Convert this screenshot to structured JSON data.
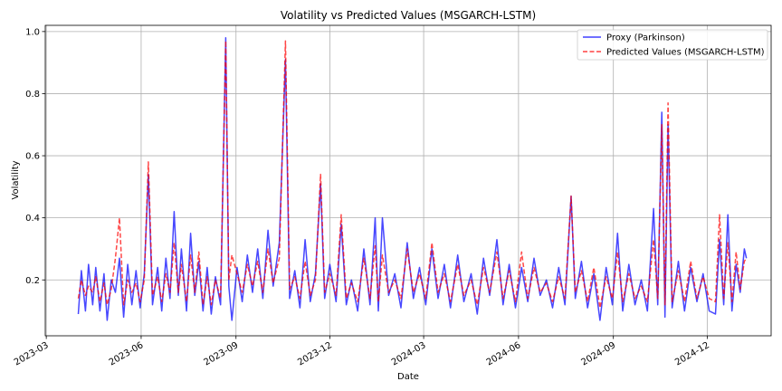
{
  "chart_data": {
    "type": "line",
    "title": "Volatility vs Predicted Values (MSGARCH-LSTM)",
    "xlabel": "Date",
    "ylabel": "Volatility",
    "x_range": [
      "2023-02-28",
      "2025-02-01"
    ],
    "ylim": [
      0.02,
      1.02
    ],
    "x_ticks": [
      "2023-03",
      "2023-06",
      "2023-09",
      "2023-12",
      "2024-03",
      "2024-06",
      "2024-09",
      "2024-12"
    ],
    "y_ticks": [
      "0.2",
      "0.4",
      "0.6",
      "0.8",
      "1.0"
    ],
    "grid": true,
    "legend_position": "top-right",
    "series": [
      {
        "name": "Proxy (Parkinson)",
        "color": "#0000ff",
        "style": "solid",
        "points": [
          [
            "2023-04-01",
            0.09
          ],
          [
            "2023-04-04",
            0.23
          ],
          [
            "2023-04-08",
            0.1
          ],
          [
            "2023-04-11",
            0.25
          ],
          [
            "2023-04-15",
            0.12
          ],
          [
            "2023-04-18",
            0.24
          ],
          [
            "2023-04-22",
            0.1
          ],
          [
            "2023-04-26",
            0.22
          ],
          [
            "2023-04-29",
            0.07
          ],
          [
            "2023-05-03",
            0.2
          ],
          [
            "2023-05-07",
            0.16
          ],
          [
            "2023-05-11",
            0.27
          ],
          [
            "2023-05-15",
            0.08
          ],
          [
            "2023-05-19",
            0.25
          ],
          [
            "2023-05-23",
            0.12
          ],
          [
            "2023-05-27",
            0.23
          ],
          [
            "2023-05-31",
            0.11
          ],
          [
            "2023-06-04",
            0.22
          ],
          [
            "2023-06-08",
            0.54
          ],
          [
            "2023-06-12",
            0.12
          ],
          [
            "2023-06-17",
            0.24
          ],
          [
            "2023-06-21",
            0.1
          ],
          [
            "2023-06-25",
            0.27
          ],
          [
            "2023-06-29",
            0.14
          ],
          [
            "2023-07-03",
            0.42
          ],
          [
            "2023-07-07",
            0.15
          ],
          [
            "2023-07-10",
            0.3
          ],
          [
            "2023-07-15",
            0.1
          ],
          [
            "2023-07-19",
            0.35
          ],
          [
            "2023-07-23",
            0.15
          ],
          [
            "2023-07-27",
            0.26
          ],
          [
            "2023-07-31",
            0.1
          ],
          [
            "2023-08-04",
            0.24
          ],
          [
            "2023-08-08",
            0.09
          ],
          [
            "2023-08-12",
            0.21
          ],
          [
            "2023-08-17",
            0.12
          ],
          [
            "2023-08-22",
            0.98
          ],
          [
            "2023-08-25",
            0.18
          ],
          [
            "2023-08-28",
            0.07
          ],
          [
            "2023-09-02",
            0.24
          ],
          [
            "2023-09-07",
            0.13
          ],
          [
            "2023-09-12",
            0.28
          ],
          [
            "2023-09-17",
            0.16
          ],
          [
            "2023-09-22",
            0.3
          ],
          [
            "2023-09-27",
            0.14
          ],
          [
            "2023-10-02",
            0.36
          ],
          [
            "2023-10-07",
            0.18
          ],
          [
            "2023-10-13",
            0.32
          ],
          [
            "2023-10-19",
            0.91
          ],
          [
            "2023-10-23",
            0.14
          ],
          [
            "2023-10-28",
            0.23
          ],
          [
            "2023-11-02",
            0.11
          ],
          [
            "2023-11-07",
            0.33
          ],
          [
            "2023-11-12",
            0.13
          ],
          [
            "2023-11-17",
            0.22
          ],
          [
            "2023-11-22",
            0.51
          ],
          [
            "2023-11-26",
            0.14
          ],
          [
            "2023-12-01",
            0.25
          ],
          [
            "2023-12-07",
            0.13
          ],
          [
            "2023-12-12",
            0.38
          ],
          [
            "2023-12-17",
            0.12
          ],
          [
            "2023-12-22",
            0.2
          ],
          [
            "2023-12-28",
            0.1
          ],
          [
            "2024-01-03",
            0.3
          ],
          [
            "2024-01-09",
            0.12
          ],
          [
            "2024-01-14",
            0.4
          ],
          [
            "2024-01-17",
            0.1
          ],
          [
            "2024-01-21",
            0.4
          ],
          [
            "2024-01-27",
            0.15
          ],
          [
            "2024-02-02",
            0.22
          ],
          [
            "2024-02-08",
            0.11
          ],
          [
            "2024-02-14",
            0.32
          ],
          [
            "2024-02-20",
            0.14
          ],
          [
            "2024-02-26",
            0.24
          ],
          [
            "2024-03-03",
            0.12
          ],
          [
            "2024-03-09",
            0.3
          ],
          [
            "2024-03-15",
            0.14
          ],
          [
            "2024-03-21",
            0.25
          ],
          [
            "2024-03-27",
            0.11
          ],
          [
            "2024-04-03",
            0.28
          ],
          [
            "2024-04-09",
            0.13
          ],
          [
            "2024-04-16",
            0.22
          ],
          [
            "2024-04-22",
            0.09
          ],
          [
            "2024-04-28",
            0.27
          ],
          [
            "2024-05-04",
            0.15
          ],
          [
            "2024-05-11",
            0.33
          ],
          [
            "2024-05-17",
            0.12
          ],
          [
            "2024-05-23",
            0.25
          ],
          [
            "2024-05-29",
            0.11
          ],
          [
            "2024-06-04",
            0.24
          ],
          [
            "2024-06-10",
            0.13
          ],
          [
            "2024-06-16",
            0.27
          ],
          [
            "2024-06-22",
            0.15
          ],
          [
            "2024-06-28",
            0.2
          ],
          [
            "2024-07-04",
            0.11
          ],
          [
            "2024-07-10",
            0.24
          ],
          [
            "2024-07-16",
            0.12
          ],
          [
            "2024-07-22",
            0.47
          ],
          [
            "2024-07-26",
            0.14
          ],
          [
            "2024-08-01",
            0.26
          ],
          [
            "2024-08-07",
            0.11
          ],
          [
            "2024-08-13",
            0.22
          ],
          [
            "2024-08-19",
            0.07
          ],
          [
            "2024-08-25",
            0.24
          ],
          [
            "2024-08-31",
            0.12
          ],
          [
            "2024-09-05",
            0.35
          ],
          [
            "2024-09-10",
            0.1
          ],
          [
            "2024-09-16",
            0.25
          ],
          [
            "2024-09-22",
            0.12
          ],
          [
            "2024-09-28",
            0.2
          ],
          [
            "2024-10-04",
            0.1
          ],
          [
            "2024-10-10",
            0.43
          ],
          [
            "2024-10-14",
            0.12
          ],
          [
            "2024-10-18",
            0.74
          ],
          [
            "2024-10-21",
            0.08
          ],
          [
            "2024-10-24",
            0.7
          ],
          [
            "2024-10-28",
            0.11
          ],
          [
            "2024-11-03",
            0.26
          ],
          [
            "2024-11-09",
            0.1
          ],
          [
            "2024-11-15",
            0.24
          ],
          [
            "2024-11-21",
            0.13
          ],
          [
            "2024-11-27",
            0.22
          ],
          [
            "2024-12-03",
            0.1
          ],
          [
            "2024-12-09",
            0.09
          ],
          [
            "2024-12-13",
            0.33
          ],
          [
            "2024-12-17",
            0.12
          ],
          [
            "2024-12-21",
            0.41
          ],
          [
            "2024-12-25",
            0.1
          ],
          [
            "2024-12-29",
            0.25
          ],
          [
            "2025-01-02",
            0.16
          ],
          [
            "2025-01-06",
            0.3
          ],
          [
            "2025-01-08",
            0.27
          ]
        ]
      },
      {
        "name": "Predicted Values (MSGARCH-LSTM)",
        "color": "#ff0000",
        "style": "dashed",
        "points": [
          [
            "2023-04-01",
            0.14
          ],
          [
            "2023-04-04",
            0.2
          ],
          [
            "2023-04-08",
            0.15
          ],
          [
            "2023-04-11",
            0.18
          ],
          [
            "2023-04-15",
            0.16
          ],
          [
            "2023-04-18",
            0.21
          ],
          [
            "2023-04-22",
            0.13
          ],
          [
            "2023-04-26",
            0.19
          ],
          [
            "2023-04-29",
            0.12
          ],
          [
            "2023-05-03",
            0.17
          ],
          [
            "2023-05-07",
            0.27
          ],
          [
            "2023-05-11",
            0.4
          ],
          [
            "2023-05-15",
            0.12
          ],
          [
            "2023-05-19",
            0.2
          ],
          [
            "2023-05-23",
            0.16
          ],
          [
            "2023-05-27",
            0.19
          ],
          [
            "2023-05-31",
            0.13
          ],
          [
            "2023-06-04",
            0.2
          ],
          [
            "2023-06-08",
            0.58
          ],
          [
            "2023-06-12",
            0.15
          ],
          [
            "2023-06-17",
            0.21
          ],
          [
            "2023-06-21",
            0.13
          ],
          [
            "2023-06-25",
            0.22
          ],
          [
            "2023-06-29",
            0.16
          ],
          [
            "2023-07-03",
            0.32
          ],
          [
            "2023-07-07",
            0.16
          ],
          [
            "2023-07-10",
            0.25
          ],
          [
            "2023-07-15",
            0.13
          ],
          [
            "2023-07-19",
            0.28
          ],
          [
            "2023-07-23",
            0.16
          ],
          [
            "2023-07-27",
            0.29
          ],
          [
            "2023-07-31",
            0.12
          ],
          [
            "2023-08-04",
            0.21
          ],
          [
            "2023-08-08",
            0.12
          ],
          [
            "2023-08-12",
            0.2
          ],
          [
            "2023-08-17",
            0.14
          ],
          [
            "2023-08-22",
            0.97
          ],
          [
            "2023-08-25",
            0.2
          ],
          [
            "2023-08-28",
            0.28
          ],
          [
            "2023-09-02",
            0.22
          ],
          [
            "2023-09-07",
            0.16
          ],
          [
            "2023-09-12",
            0.25
          ],
          [
            "2023-09-17",
            0.18
          ],
          [
            "2023-09-22",
            0.26
          ],
          [
            "2023-09-27",
            0.16
          ],
          [
            "2023-10-02",
            0.3
          ],
          [
            "2023-10-07",
            0.19
          ],
          [
            "2023-10-13",
            0.27
          ],
          [
            "2023-10-19",
            0.97
          ],
          [
            "2023-10-23",
            0.17
          ],
          [
            "2023-10-28",
            0.21
          ],
          [
            "2023-11-02",
            0.14
          ],
          [
            "2023-11-07",
            0.26
          ],
          [
            "2023-11-12",
            0.15
          ],
          [
            "2023-11-17",
            0.2
          ],
          [
            "2023-11-22",
            0.54
          ],
          [
            "2023-11-26",
            0.16
          ],
          [
            "2023-12-01",
            0.22
          ],
          [
            "2023-12-07",
            0.15
          ],
          [
            "2023-12-12",
            0.41
          ],
          [
            "2023-12-17",
            0.14
          ],
          [
            "2023-12-22",
            0.19
          ],
          [
            "2023-12-28",
            0.13
          ],
          [
            "2024-01-03",
            0.27
          ],
          [
            "2024-01-09",
            0.14
          ],
          [
            "2024-01-14",
            0.31
          ],
          [
            "2024-01-17",
            0.13
          ],
          [
            "2024-01-21",
            0.28
          ],
          [
            "2024-01-27",
            0.16
          ],
          [
            "2024-02-02",
            0.2
          ],
          [
            "2024-02-08",
            0.14
          ],
          [
            "2024-02-14",
            0.3
          ],
          [
            "2024-02-20",
            0.16
          ],
          [
            "2024-02-26",
            0.22
          ],
          [
            "2024-03-03",
            0.14
          ],
          [
            "2024-03-09",
            0.32
          ],
          [
            "2024-03-15",
            0.16
          ],
          [
            "2024-03-21",
            0.22
          ],
          [
            "2024-03-27",
            0.13
          ],
          [
            "2024-04-03",
            0.25
          ],
          [
            "2024-04-09",
            0.15
          ],
          [
            "2024-04-16",
            0.2
          ],
          [
            "2024-04-22",
            0.12
          ],
          [
            "2024-04-28",
            0.24
          ],
          [
            "2024-05-04",
            0.16
          ],
          [
            "2024-05-11",
            0.29
          ],
          [
            "2024-05-17",
            0.14
          ],
          [
            "2024-05-23",
            0.23
          ],
          [
            "2024-05-29",
            0.13
          ],
          [
            "2024-06-04",
            0.29
          ],
          [
            "2024-06-10",
            0.14
          ],
          [
            "2024-06-16",
            0.24
          ],
          [
            "2024-06-22",
            0.16
          ],
          [
            "2024-06-28",
            0.19
          ],
          [
            "2024-07-04",
            0.13
          ],
          [
            "2024-07-10",
            0.21
          ],
          [
            "2024-07-16",
            0.14
          ],
          [
            "2024-07-22",
            0.47
          ],
          [
            "2024-07-26",
            0.16
          ],
          [
            "2024-08-01",
            0.23
          ],
          [
            "2024-08-07",
            0.13
          ],
          [
            "2024-08-13",
            0.24
          ],
          [
            "2024-08-19",
            0.11
          ],
          [
            "2024-08-25",
            0.21
          ],
          [
            "2024-08-31",
            0.14
          ],
          [
            "2024-09-05",
            0.29
          ],
          [
            "2024-09-10",
            0.13
          ],
          [
            "2024-09-16",
            0.22
          ],
          [
            "2024-09-22",
            0.14
          ],
          [
            "2024-09-28",
            0.18
          ],
          [
            "2024-10-04",
            0.13
          ],
          [
            "2024-10-10",
            0.33
          ],
          [
            "2024-10-14",
            0.14
          ],
          [
            "2024-10-18",
            0.7
          ],
          [
            "2024-10-21",
            0.12
          ],
          [
            "2024-10-24",
            0.77
          ],
          [
            "2024-10-28",
            0.13
          ],
          [
            "2024-11-03",
            0.23
          ],
          [
            "2024-11-09",
            0.13
          ],
          [
            "2024-11-15",
            0.26
          ],
          [
            "2024-11-21",
            0.14
          ],
          [
            "2024-11-27",
            0.21
          ],
          [
            "2024-12-03",
            0.14
          ],
          [
            "2024-12-09",
            0.13
          ],
          [
            "2024-12-13",
            0.41
          ],
          [
            "2024-12-17",
            0.14
          ],
          [
            "2024-12-21",
            0.32
          ],
          [
            "2024-12-25",
            0.13
          ],
          [
            "2024-12-29",
            0.29
          ],
          [
            "2025-01-02",
            0.17
          ],
          [
            "2025-01-06",
            0.26
          ],
          [
            "2025-01-08",
            0.27
          ]
        ]
      }
    ]
  }
}
